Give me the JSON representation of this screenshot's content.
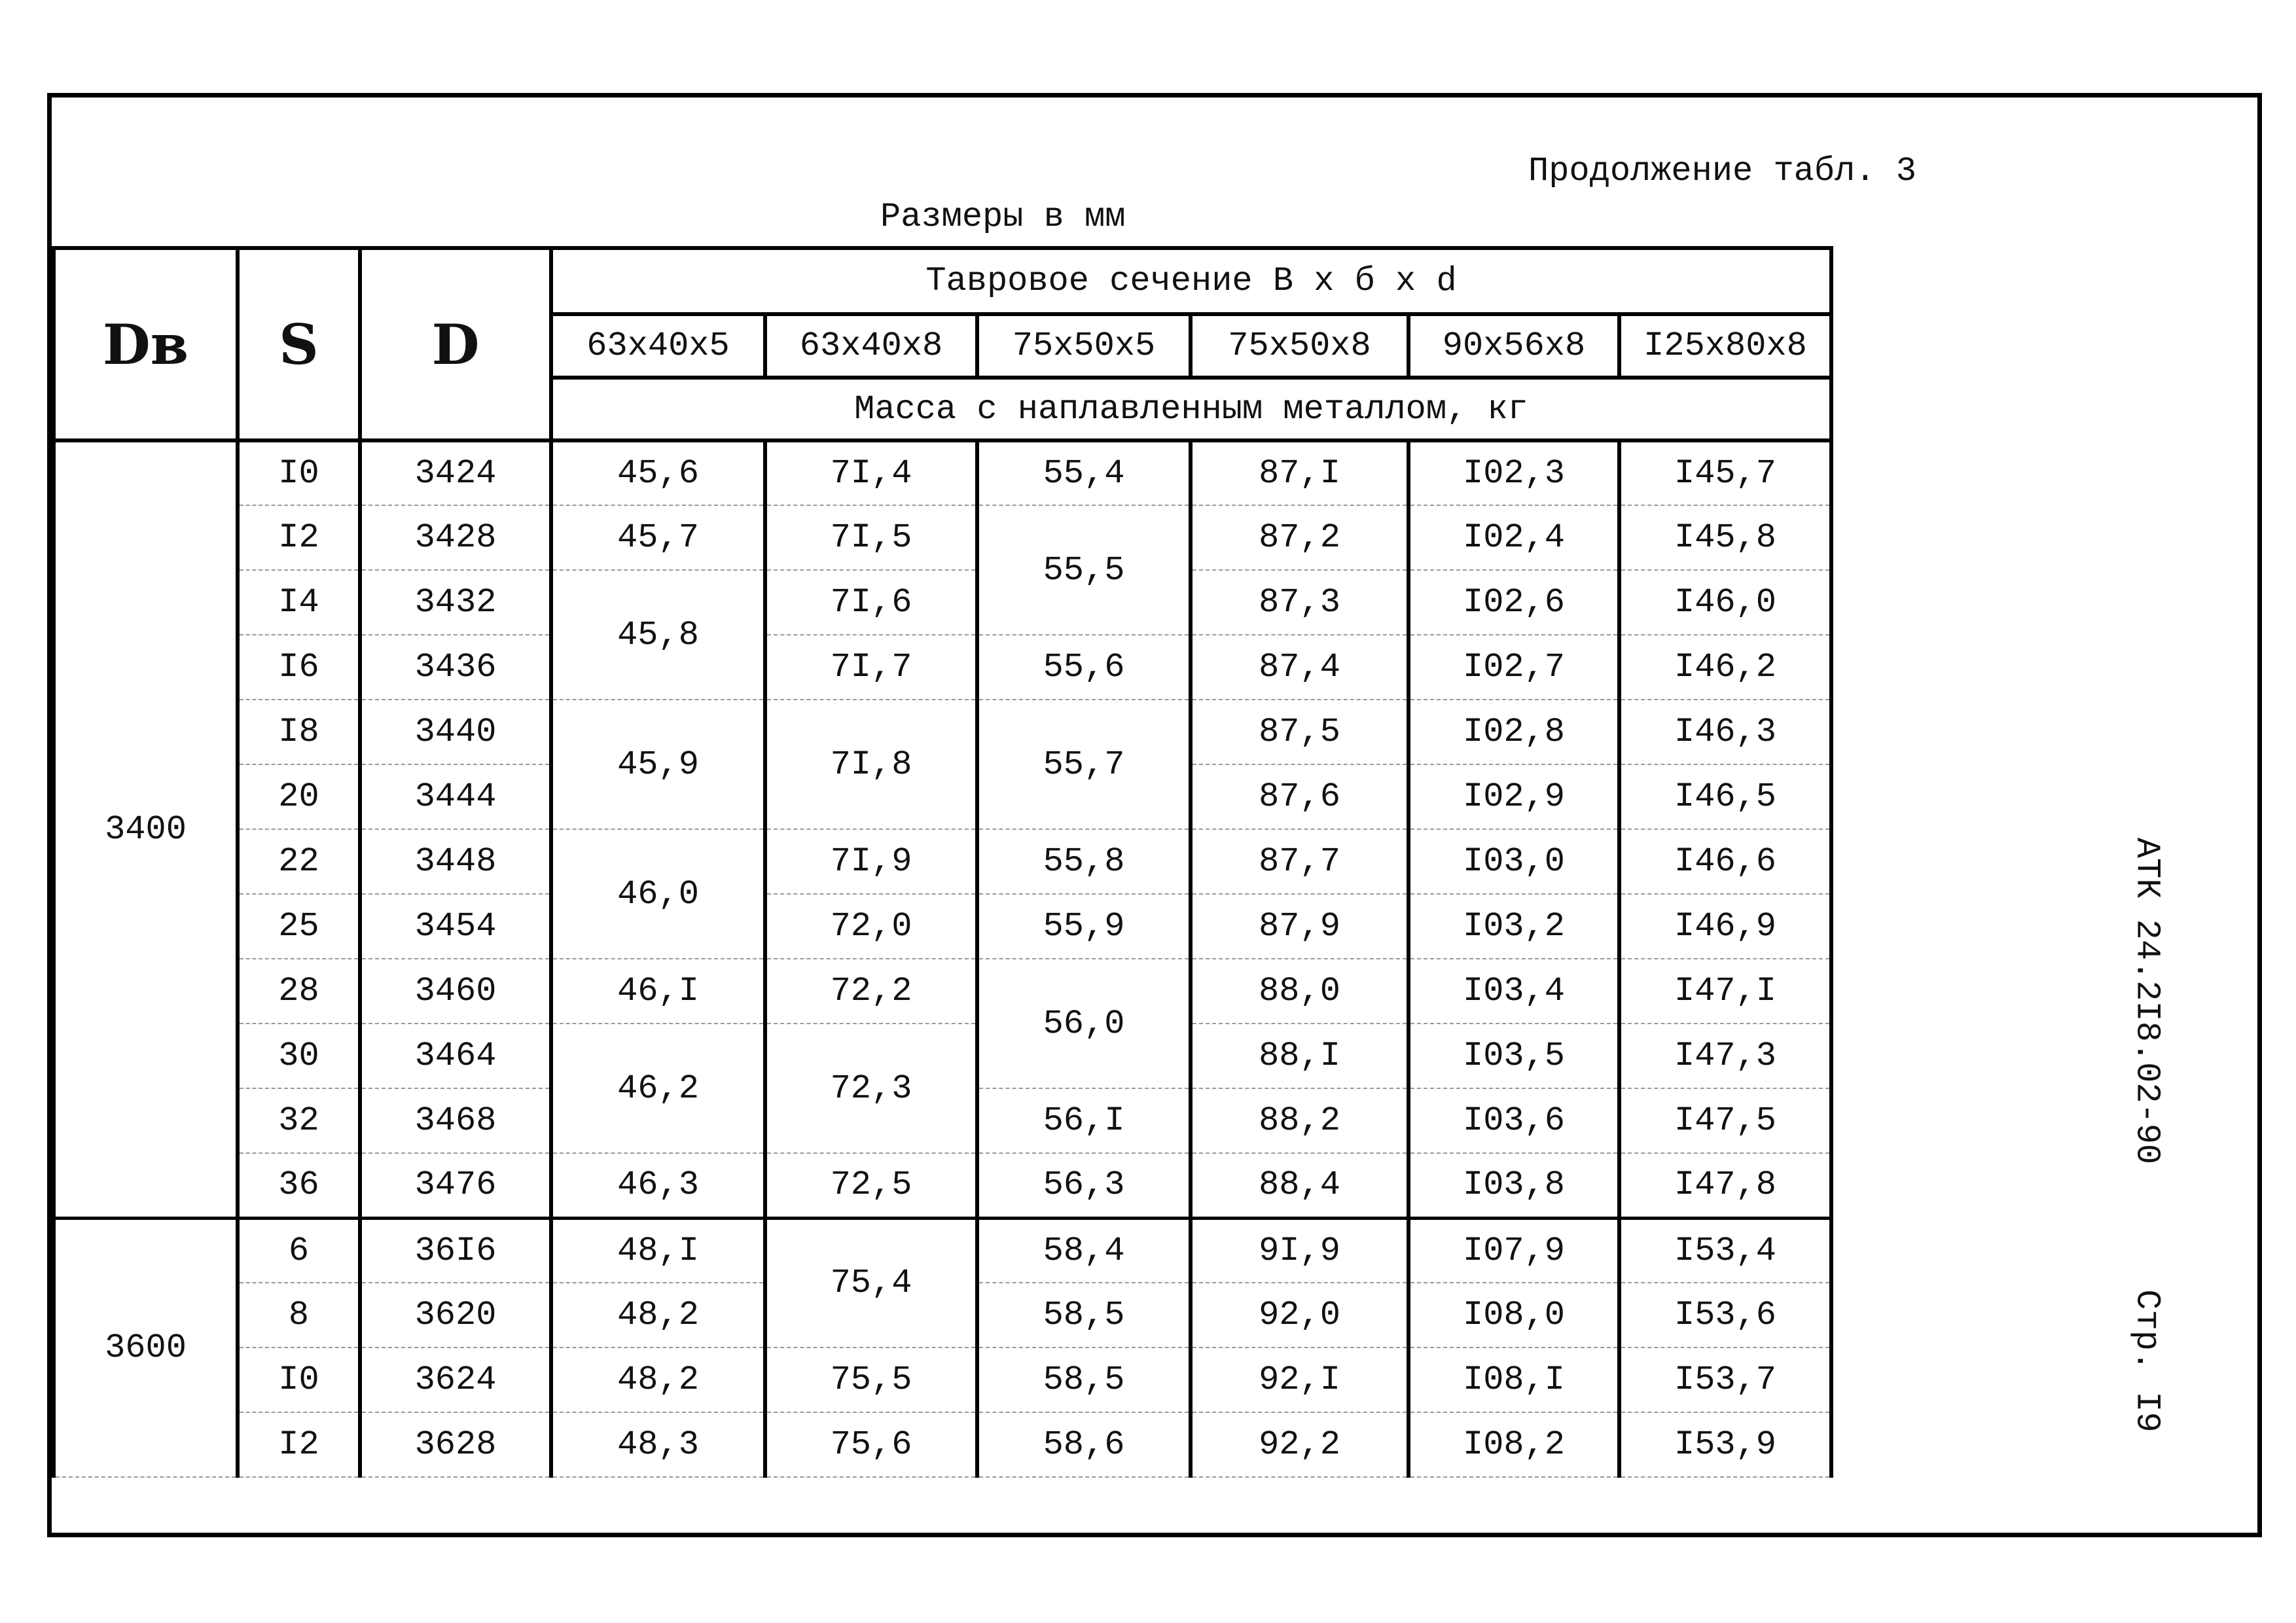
{
  "header": {
    "continuation": "Продолжение табл. 3",
    "units": "Размеры в мм"
  },
  "side": {
    "code": "АТК 24.2I8.02-90",
    "page": "Стр. I9"
  },
  "table": {
    "headers": {
      "dv": "Dв",
      "s": "S",
      "d": "D",
      "section": "Тавровое сечение В x б x d",
      "sizes": [
        "63x40x5",
        "63x40x8",
        "75x50x5",
        "75x50x8",
        "90x56x8",
        "I25x80x8"
      ],
      "mass": "Масса с наплавленным металлом,  кг"
    },
    "dv": [
      "3400",
      null,
      null,
      null,
      null,
      null,
      null,
      null,
      null,
      null,
      null,
      null,
      "3600",
      null,
      null,
      null
    ],
    "s": [
      "I0",
      "I2",
      "I4",
      "I6",
      "I8",
      "20",
      "22",
      "25",
      "28",
      "30",
      "32",
      "36",
      "6",
      "8",
      "I0",
      "I2"
    ],
    "d": [
      "3424",
      "3428",
      "3432",
      "3436",
      "3440",
      "3444",
      "3448",
      "3454",
      "3460",
      "3464",
      "3468",
      "3476",
      "36I6",
      "3620",
      "3624",
      "3628"
    ],
    "mass": [
      [
        "45,6",
        "45,7",
        "45,8",
        null,
        "45,9",
        null,
        "46,0",
        null,
        "46,I",
        "46,2",
        null,
        "46,3",
        "48,I",
        "48,2",
        "48,2",
        "48,3"
      ],
      [
        "7I,4",
        "7I,5",
        "7I,6",
        "7I,7",
        "7I,8",
        null,
        "7I,9",
        "72,0",
        "72,2",
        "72,3",
        null,
        "72,5",
        "75,4",
        null,
        "75,5",
        "75,6"
      ],
      [
        "55,4",
        "55,5",
        null,
        "55,6",
        "55,7",
        null,
        "55,8",
        "55,9",
        "56,0",
        null,
        "56,I",
        "56,3",
        "58,4",
        "58,5",
        "58,5",
        "58,6"
      ],
      [
        "87,I",
        "87,2",
        "87,3",
        "87,4",
        "87,5",
        "87,6",
        "87,7",
        "87,9",
        "88,0",
        "88,I",
        "88,2",
        "88,4",
        "9I,9",
        "92,0",
        "92,I",
        "92,2"
      ],
      [
        "I02,3",
        "I02,4",
        "I02,6",
        "I02,7",
        "I02,8",
        "I02,9",
        "I03,0",
        "I03,2",
        "I03,4",
        "I03,5",
        "I03,6",
        "I03,8",
        "I07,9",
        "I08,0",
        "I08,I",
        "I08,2"
      ],
      [
        "I45,7",
        "I45,8",
        "I46,0",
        "I46,2",
        "I46,3",
        "I46,5",
        "I46,6",
        "I46,9",
        "I47,I",
        "I47,3",
        "I47,5",
        "I47,8",
        "I53,4",
        "I53,6",
        "I53,7",
        "I53,9"
      ]
    ]
  }
}
